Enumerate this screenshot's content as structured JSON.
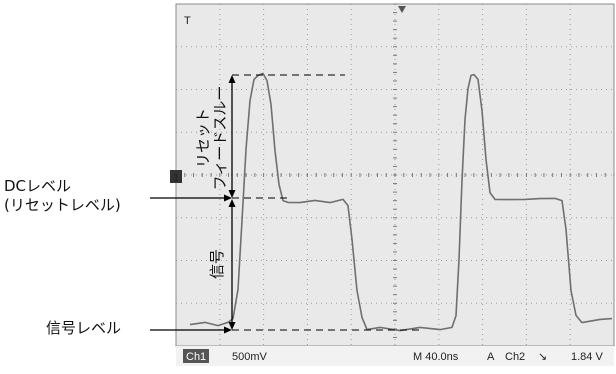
{
  "labels": {
    "dc_level_line1": "DCレベル",
    "dc_level_line2": "(リセットレベル)",
    "signal_level": "信号レベル",
    "reset_feedthrough_line1": "リセット",
    "reset_feedthrough_line2": "フィードスルー",
    "signal": "信号"
  },
  "scope": {
    "channel_badge": "Ch1",
    "volts_per_div": "500mV",
    "timebase": "M 40.0ns",
    "trigger_mode": "A",
    "trigger_source": "Ch2",
    "trigger_level": "1.84 V",
    "trigger_marker": "T",
    "ch1_marker": "1",
    "slope_glyph": "↘"
  },
  "colors": {
    "screen_background": "#e9e9e9",
    "grid": "#9a9a9a",
    "trace": "#6f6f6f",
    "annotation": "#000000"
  }
}
